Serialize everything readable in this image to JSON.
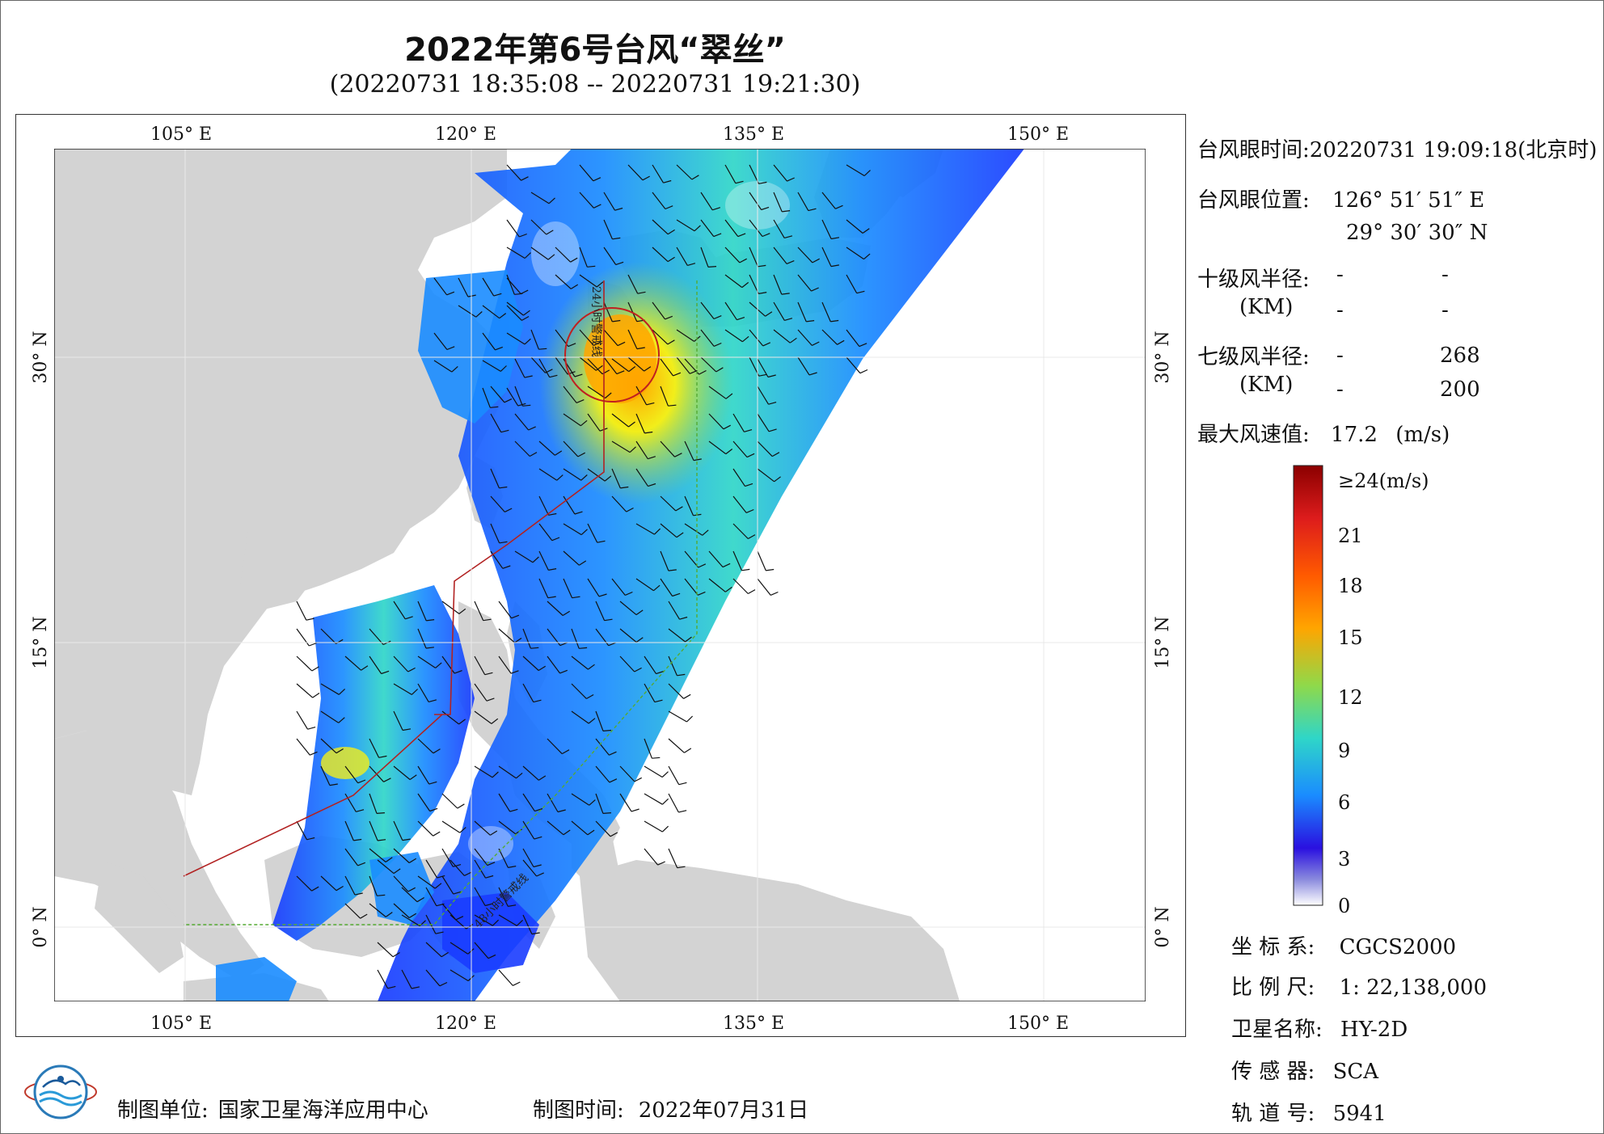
{
  "title": "2022年第6号台风“翠丝”",
  "subtitle": "(20220731 18:35:08 -- 20220731 19:21:30)",
  "map": {
    "lon_ticks": [
      "105° E",
      "120° E",
      "135° E",
      "150° E"
    ],
    "lat_ticks": [
      "30° N",
      "15° N",
      "0° N"
    ],
    "lon_range": [
      98,
      155
    ],
    "lat_range": [
      -4,
      41
    ],
    "warning_line_24h": "24小时警戒线",
    "warning_line_48h": "48小时警戒线",
    "colors": {
      "land": "#d3d3d3",
      "ocean": "#ffffff",
      "warning_24h": "#b22222",
      "warning_48h": "#55aa33"
    }
  },
  "info": {
    "eye_time_label": "台风眼时间:",
    "eye_time_value": "20220731 19:09:18(北京时)",
    "eye_pos_label": "台风眼位置:",
    "eye_lon": "126° 51′ 51″ E",
    "eye_lat": "29° 30′ 30″ N",
    "r10_label": "十级风半径:",
    "r10_v1": "-",
    "r10_v2": "-",
    "r10_v3": "-",
    "r10_v4": "-",
    "r7_label": "七级风半径:",
    "r7_v1": "-",
    "r7_v2": "268",
    "r7_v3": "-",
    "r7_v4": "200",
    "km_label": "(KM)",
    "max_wind_label": "最大风速值:",
    "max_wind_value": "17.2",
    "max_wind_unit": "(m/s)"
  },
  "colorbar": {
    "labels": [
      "≥24(m/s)",
      "21",
      "18",
      "15",
      "12",
      "9",
      "6",
      "3",
      "0"
    ],
    "values": [
      24,
      21,
      18,
      15,
      12,
      9,
      6,
      3,
      0
    ],
    "colors": [
      "#8b0000",
      "#dd1c1c",
      "#ff5a00",
      "#ffa500",
      "#f2ee1a",
      "#8fd94a",
      "#2fd6c8",
      "#1a8cff",
      "#1a3cff",
      "#2a10e0",
      "#8888dd",
      "#ffffff"
    ]
  },
  "meta": {
    "crs_label": "坐 标 系:",
    "crs_value": "CGCS2000",
    "scale_label": "比 例 尺:",
    "scale_value": "1: 22,138,000",
    "sat_label": "卫星名称:",
    "sat_value": "HY-2D",
    "sensor_label": "传 感 器:",
    "sensor_value": "SCA",
    "orbit_label": "轨 道 号:",
    "orbit_value": "5941"
  },
  "footer": {
    "maker_label": "制图单位:",
    "maker_value": "国家卫星海洋应用中心",
    "date_label": "制图时间:",
    "date_value": "2022年07月31日"
  }
}
